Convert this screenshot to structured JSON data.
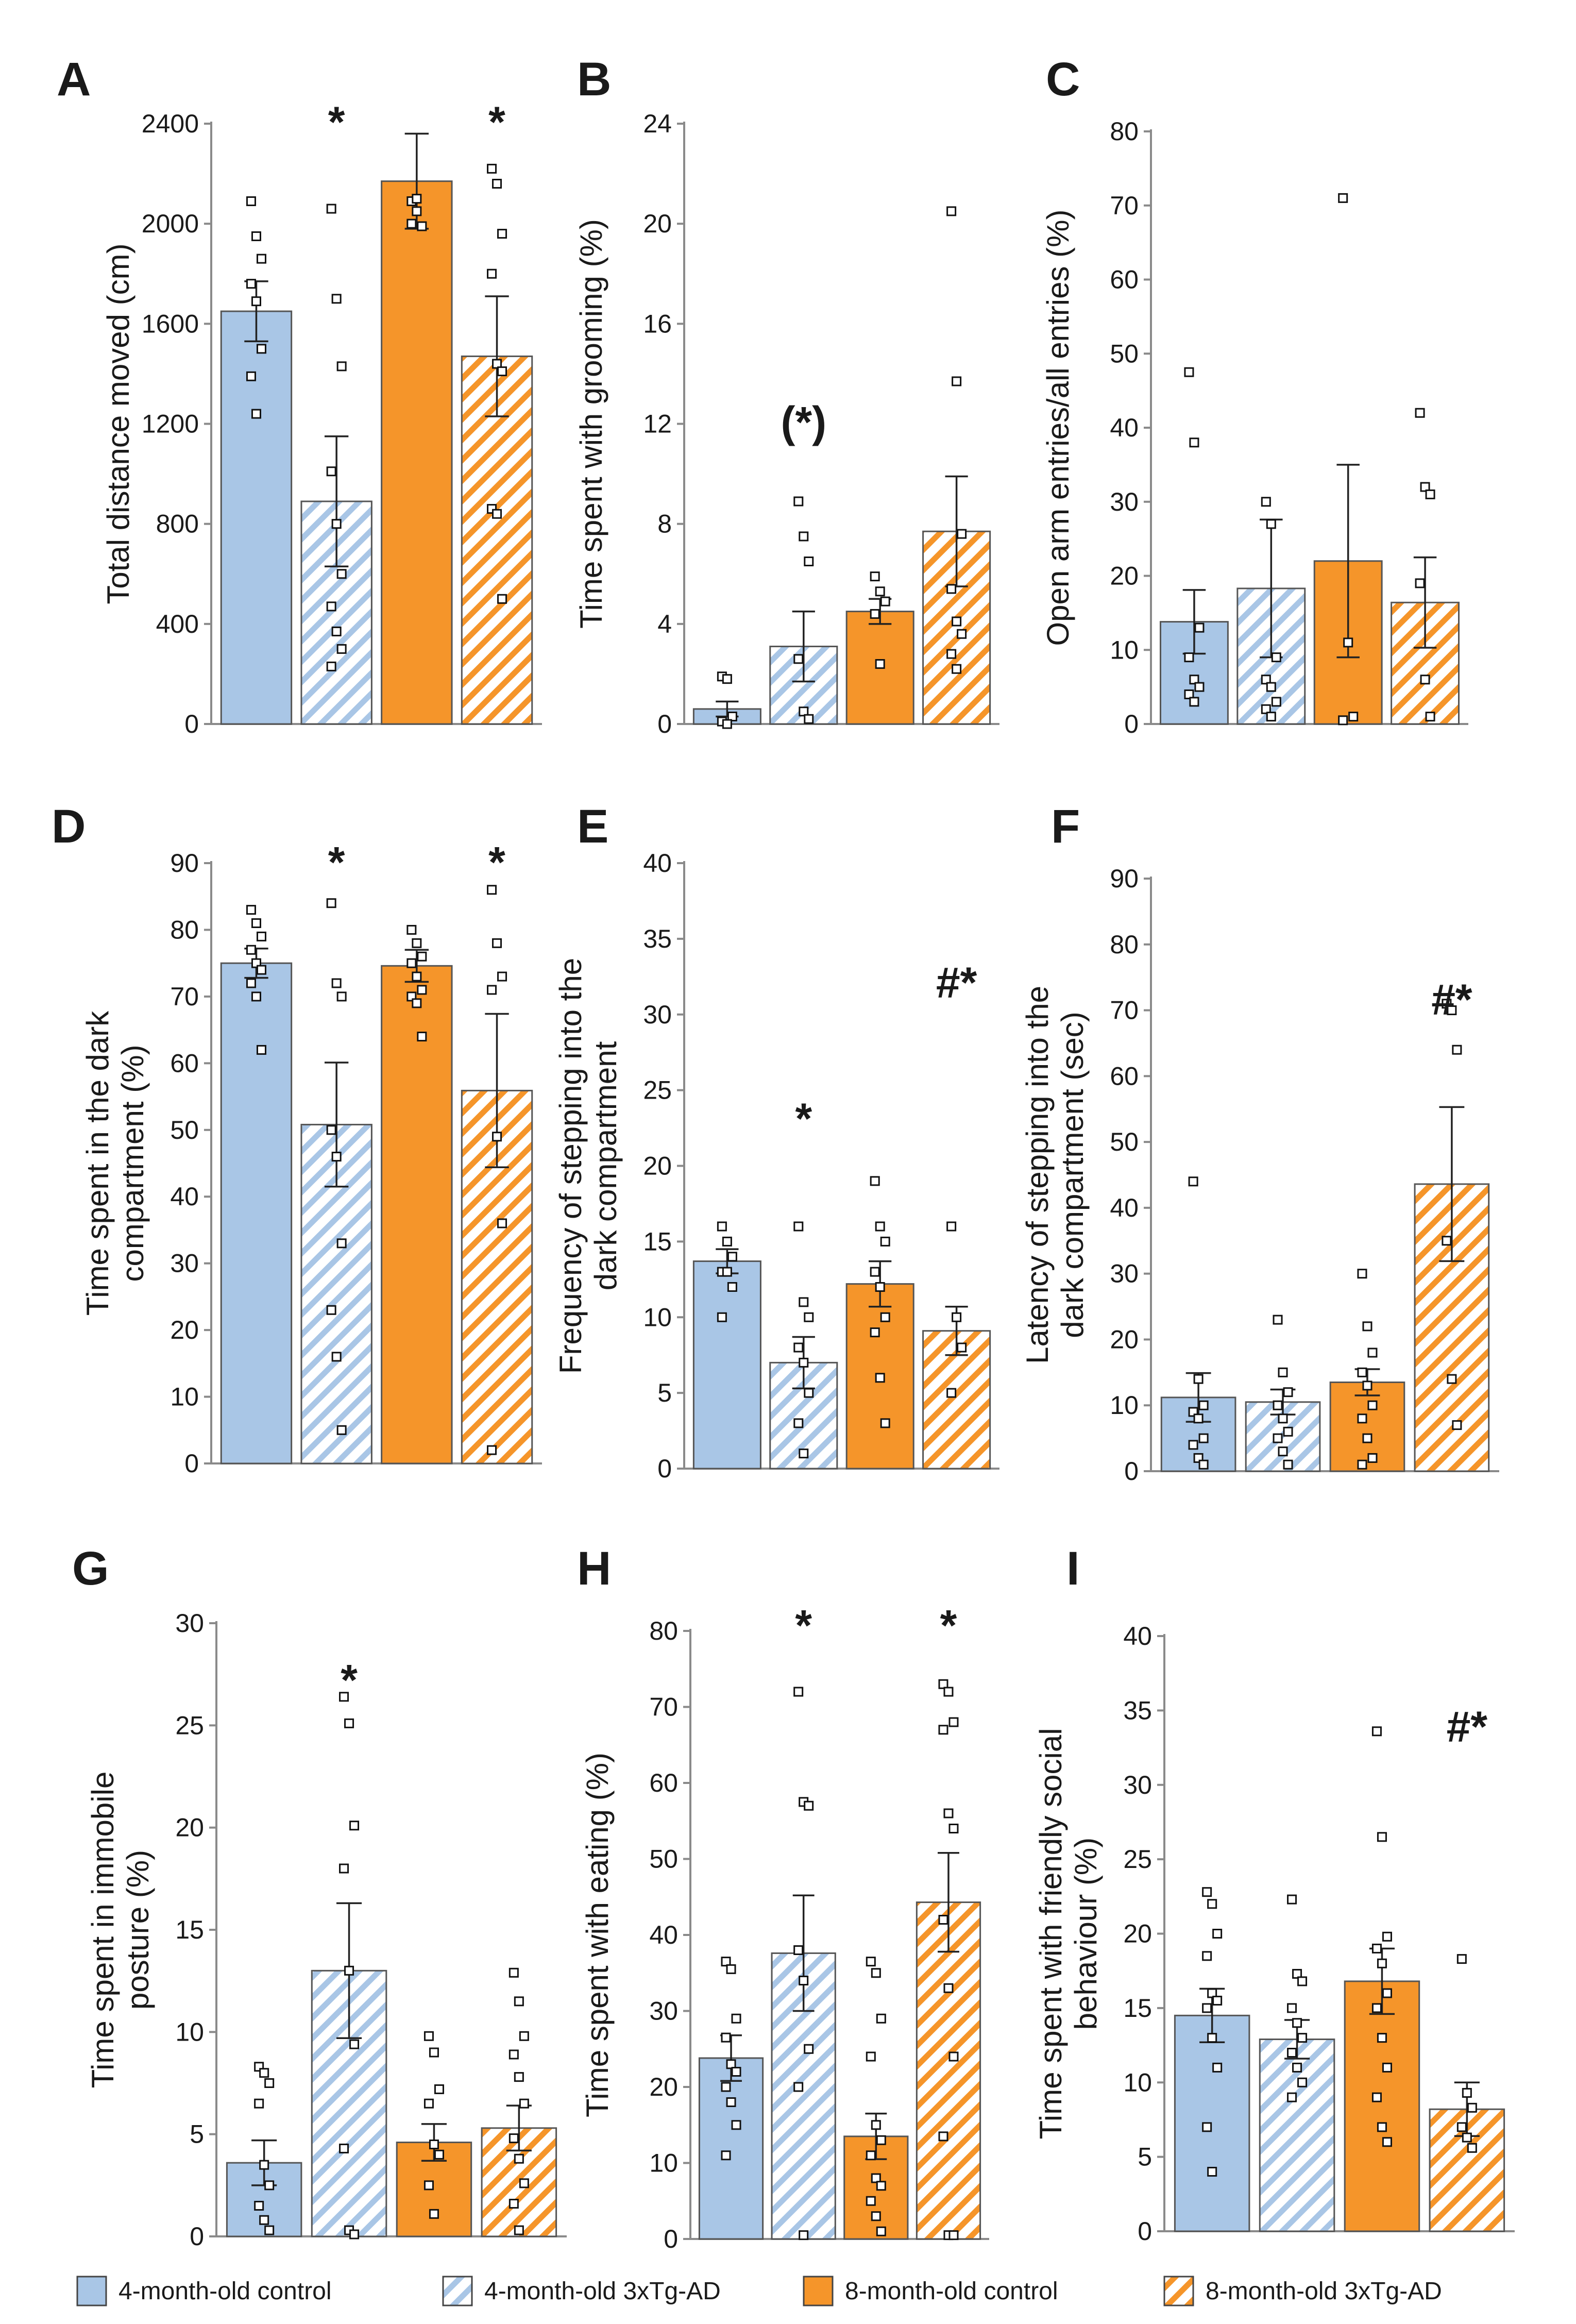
{
  "figure": {
    "legend": [
      {
        "key": "c4",
        "label": "4-month-old control"
      },
      {
        "key": "t4",
        "label": "4-month-old 3xTg-AD"
      },
      {
        "key": "c8",
        "label": "8-month-old control"
      },
      {
        "key": "t8",
        "label": "8-month-old 3xTg-AD"
      }
    ],
    "colors": {
      "blue": "#a9c6e6",
      "orange": "#f5952a"
    }
  },
  "chart_data": [
    {
      "type": "bar",
      "panel": "A",
      "ylabel": [
        "Total distance moved (cm)"
      ],
      "ylim": [
        0,
        2400
      ],
      "ticks": [
        0,
        400,
        800,
        1200,
        1600,
        2000,
        2400
      ],
      "tick_labels": [
        "0",
        "400",
        "800",
        "1200",
        "1600",
        "2000",
        "2400"
      ],
      "groups": [
        "4-month-old control",
        "4-month-old 3xTg-AD",
        "8-month-old control",
        "8-month-old 3xTg-AD"
      ],
      "values": [
        1650,
        890,
        2170,
        1470
      ],
      "sem": [
        120,
        260,
        190,
        240
      ],
      "points": [
        [
          2090,
          1950,
          1860,
          1760,
          1690,
          1500,
          1390,
          1240
        ],
        [
          2060,
          1700,
          1430,
          1010,
          800,
          600,
          470,
          370,
          300,
          230
        ],
        [
          2090,
          2050,
          1990,
          2000,
          2100
        ],
        [
          2220,
          2160,
          1960,
          1800,
          1440,
          1410,
          860,
          840,
          500
        ]
      ],
      "annotations": [
        {
          "group": 1,
          "text": "*",
          "value": 2430
        },
        {
          "group": 3,
          "text": "*",
          "value": 2430
        }
      ]
    },
    {
      "type": "bar",
      "panel": "B",
      "ylabel": [
        "Time spent with grooming (%)"
      ],
      "ylim": [
        0,
        24
      ],
      "ticks": [
        0,
        4,
        8,
        12,
        16,
        20,
        24
      ],
      "tick_labels": [
        "0",
        "4",
        "8",
        "12",
        "16",
        "20",
        "24"
      ],
      "groups": [
        "4-month-old control",
        "4-month-old 3xTg-AD",
        "8-month-old control",
        "8-month-old 3xTg-AD"
      ],
      "values": [
        0.6,
        3.1,
        4.5,
        7.7
      ],
      "sem": [
        0.3,
        1.4,
        0.5,
        2.2
      ],
      "points": [
        [
          1.9,
          1.8,
          0.3,
          0.1,
          0
        ],
        [
          8.9,
          7.5,
          6.5,
          2.6,
          0.5,
          0.2
        ],
        [
          5.9,
          5.3,
          4.9,
          4.4,
          2.4
        ],
        [
          20.5,
          13.7,
          7.6,
          5.4,
          4.1,
          3.6,
          2.8,
          2.2
        ]
      ],
      "annotations": [
        {
          "group": 1,
          "text": "(*)",
          "value": 12.3
        }
      ]
    },
    {
      "type": "bar",
      "panel": "C",
      "ylabel": [
        "Open arm entries/all entries (%)"
      ],
      "ylim": [
        0,
        80
      ],
      "ticks": [
        0,
        10,
        20,
        30,
        40,
        50,
        60,
        70,
        80
      ],
      "tick_labels": [
        "0",
        "10",
        "20",
        "30",
        "40",
        "50",
        "60",
        "70",
        "80"
      ],
      "groups": [
        "4-month-old control",
        "4-month-old 3xTg-AD",
        "8-month-old control",
        "8-month-old 3xTg-AD"
      ],
      "values": [
        13.8,
        18.3,
        22,
        16.4
      ],
      "sem": [
        4.3,
        9.3,
        13,
        6.1
      ],
      "points": [
        [
          47.5,
          38,
          13,
          9,
          6,
          5,
          4,
          3
        ],
        [
          30,
          27,
          9,
          6,
          5,
          3,
          2,
          1
        ],
        [
          71,
          11,
          1,
          0.5
        ],
        [
          42,
          32,
          31,
          19,
          6,
          1
        ]
      ],
      "annotations": []
    },
    {
      "type": "bar",
      "panel": "D",
      "ylabel": [
        "Time spent in the dark",
        "compartment (%)"
      ],
      "ylim": [
        0,
        90
      ],
      "ticks": [
        0,
        10,
        20,
        30,
        40,
        50,
        60,
        70,
        80,
        90
      ],
      "tick_labels": [
        "0",
        "10",
        "20",
        "30",
        "40",
        "50",
        "60",
        "70",
        "80",
        "90"
      ],
      "groups": [
        "4-month-old control",
        "4-month-old 3xTg-AD",
        "8-month-old control",
        "8-month-old 3xTg-AD"
      ],
      "values": [
        75,
        50.8,
        74.6,
        55.9
      ],
      "sem": [
        2.2,
        9.3,
        2.4,
        11.5
      ],
      "points": [
        [
          83,
          81,
          79,
          77,
          75,
          74,
          72,
          70,
          62
        ],
        [
          84,
          72,
          70,
          50,
          46,
          33,
          23,
          16,
          5
        ],
        [
          80,
          78,
          76,
          75,
          73,
          71,
          70,
          69,
          64
        ],
        [
          86,
          78,
          73,
          71,
          49,
          36,
          2
        ]
      ],
      "annotations": [
        {
          "group": 1,
          "text": "*",
          "value": 91
        },
        {
          "group": 3,
          "text": "*",
          "value": 91
        }
      ]
    },
    {
      "type": "bar",
      "panel": "E",
      "ylabel": [
        "Frequency of stepping into the",
        "dark compartment"
      ],
      "ylim": [
        0,
        40
      ],
      "ticks": [
        0,
        5,
        10,
        15,
        20,
        25,
        30,
        35,
        40
      ],
      "tick_labels": [
        "0",
        "5",
        "10",
        "15",
        "20",
        "25",
        "30",
        "35",
        "40"
      ],
      "groups": [
        "4-month-old control",
        "4-month-old 3xTg-AD",
        "8-month-old control",
        "8-month-old 3xTg-AD"
      ],
      "values": [
        13.7,
        7,
        12.2,
        9.1
      ],
      "sem": [
        0.8,
        1.7,
        1.5,
        1.6
      ],
      "points": [
        [
          16,
          15,
          14,
          13,
          13,
          12,
          10
        ],
        [
          16,
          11,
          10,
          8,
          7,
          5,
          3,
          1
        ],
        [
          19,
          16,
          15,
          13,
          12,
          10,
          9,
          6,
          3
        ],
        [
          16,
          10,
          8,
          5
        ]
      ],
      "annotations": [
        {
          "group": 1,
          "text": "*",
          "value": 23.5
        },
        {
          "group": 3,
          "text": "#*",
          "value": 32.5
        }
      ]
    },
    {
      "type": "bar",
      "panel": "F",
      "ylabel": [
        "Latency of stepping into the",
        "dark compartment (sec)"
      ],
      "ylim": [
        0,
        90
      ],
      "ticks": [
        0,
        10,
        20,
        30,
        40,
        50,
        60,
        70,
        80,
        90
      ],
      "tick_labels": [
        "0",
        "10",
        "20",
        "30",
        "40",
        "50",
        "60",
        "70",
        "80",
        "90"
      ],
      "groups": [
        "4-month-old control",
        "4-month-old 3xTg-AD",
        "8-month-old control",
        "8-month-old 3xTg-AD"
      ],
      "values": [
        11.2,
        10.5,
        13.5,
        43.6
      ],
      "sem": [
        3.7,
        1.9,
        2,
        11.7
      ],
      "points": [
        [
          44,
          14,
          10,
          9,
          8,
          5,
          4,
          2,
          1
        ],
        [
          23,
          15,
          12,
          10,
          8,
          6,
          5,
          3,
          1
        ],
        [
          30,
          22,
          18,
          15,
          13,
          10,
          8,
          5,
          2,
          1
        ],
        [
          71,
          70,
          64,
          35,
          14,
          7
        ]
      ],
      "annotations": [
        {
          "group": 3,
          "text": "#*",
          "value": 72.5
        }
      ]
    },
    {
      "type": "bar",
      "panel": "G",
      "ylabel": [
        "Time spent in immobile",
        "posture (%)"
      ],
      "ylim": [
        0,
        30
      ],
      "ticks": [
        0,
        5,
        10,
        15,
        20,
        25,
        30
      ],
      "tick_labels": [
        "0",
        "5",
        "10",
        "15",
        "20",
        "25",
        "30"
      ],
      "groups": [
        "4-month-old control",
        "4-month-old 3xTg-AD",
        "8-month-old control",
        "8-month-old 3xTg-AD"
      ],
      "values": [
        3.6,
        13,
        4.6,
        5.3
      ],
      "sem": [
        1.1,
        3.3,
        0.9,
        1.1
      ],
      "points": [
        [
          8.3,
          8,
          7.5,
          6.5,
          3.5,
          2.5,
          1.5,
          0.8,
          0.3
        ],
        [
          26.4,
          25.1,
          20.1,
          18,
          13,
          9.4,
          4.3,
          0.3,
          0.1
        ],
        [
          9.8,
          9,
          7.2,
          6.5,
          4.5,
          4,
          2.5,
          1.1
        ],
        [
          12.9,
          11.5,
          9.8,
          8.9,
          7.8,
          6.5,
          4.8,
          3.8,
          2.6,
          1.6,
          0.3
        ]
      ],
      "annotations": [
        {
          "group": 1,
          "text": "*",
          "value": 27.5
        }
      ]
    },
    {
      "type": "bar",
      "panel": "H",
      "ylabel": [
        "Time spent with eating (%)"
      ],
      "ylim": [
        0,
        80
      ],
      "ticks": [
        0,
        10,
        20,
        30,
        40,
        50,
        60,
        70,
        80
      ],
      "tick_labels": [
        "0",
        "10",
        "20",
        "30",
        "40",
        "50",
        "60",
        "70",
        "80"
      ],
      "groups": [
        "4-month-old control",
        "4-month-old 3xTg-AD",
        "8-month-old control",
        "8-month-old 3xTg-AD"
      ],
      "values": [
        23.8,
        37.6,
        13.5,
        44.3
      ],
      "sem": [
        3,
        7.6,
        3,
        6.5
      ],
      "points": [
        [
          36.5,
          35.5,
          29,
          26.5,
          23,
          22,
          20,
          18,
          15,
          11
        ],
        [
          72,
          57.5,
          57,
          38,
          34,
          25,
          20,
          0.5
        ],
        [
          36.5,
          35,
          29,
          24,
          15,
          13,
          11,
          8,
          7,
          5,
          3,
          1
        ],
        [
          73,
          72,
          68,
          67,
          56,
          54,
          42,
          33,
          24,
          13.5,
          0.5,
          0.5
        ]
      ],
      "annotations": [
        {
          "group": 1,
          "text": "*",
          "value": 81.5
        },
        {
          "group": 3,
          "text": "*",
          "value": 81.5
        }
      ]
    },
    {
      "type": "bar",
      "panel": "I",
      "ylabel": [
        "Time spent with friendly social",
        "behaviour (%)"
      ],
      "ylim": [
        0,
        40
      ],
      "ticks": [
        0,
        5,
        10,
        15,
        20,
        25,
        30,
        35,
        40
      ],
      "tick_labels": [
        "0",
        "5",
        "10",
        "15",
        "20",
        "25",
        "30",
        "35",
        "40"
      ],
      "groups": [
        "4-month-old control",
        "4-month-old 3xTg-AD",
        "8-month-old control",
        "8-month-old 3xTg-AD"
      ],
      "values": [
        14.5,
        12.9,
        16.8,
        8.2
      ],
      "sem": [
        1.8,
        1.3,
        2.2,
        1.8
      ],
      "points": [
        [
          22.8,
          22,
          20,
          18.5,
          16,
          15.5,
          15,
          13,
          11,
          7,
          4
        ],
        [
          22.3,
          17.3,
          16.8,
          15,
          14,
          13,
          12,
          11,
          10,
          9
        ],
        [
          33.6,
          26.5,
          19.8,
          19,
          18,
          16,
          15,
          13,
          11,
          9,
          7,
          6
        ],
        [
          18.3,
          9.3,
          8.3,
          7,
          6.3,
          5.6
        ]
      ],
      "annotations": [
        {
          "group": 3,
          "text": "#*",
          "value": 34.3
        }
      ]
    }
  ]
}
